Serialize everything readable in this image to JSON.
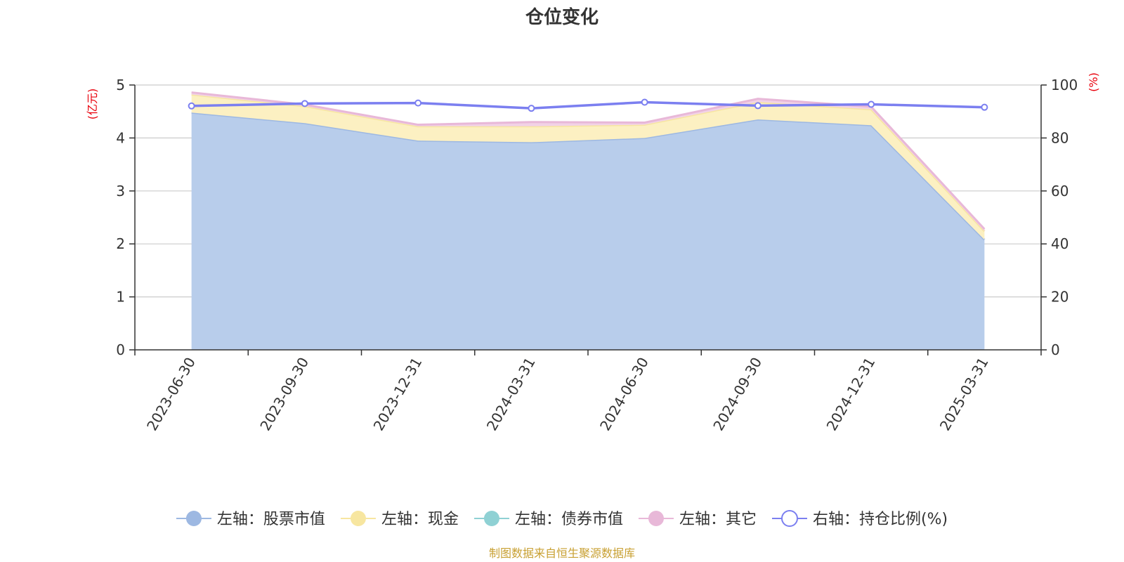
{
  "chart_data": {
    "type": "area",
    "title": "仓位变化",
    "categories": [
      "2023-06-30",
      "2023-09-30",
      "2023-12-31",
      "2024-03-31",
      "2024-06-30",
      "2024-09-30",
      "2024-12-31",
      "2025-03-31"
    ],
    "left_axis": {
      "unit": "(亿元)",
      "range": [
        0,
        5
      ],
      "ticks": [
        0,
        1,
        2,
        3,
        4,
        5
      ]
    },
    "right_axis": {
      "unit": "(%)",
      "range": [
        0,
        100
      ],
      "ticks": [
        0,
        20,
        40,
        60,
        80,
        100
      ]
    },
    "stacked_series": [
      {
        "name": "左轴：股票市值",
        "color": "#9db8e2",
        "fill": "#b8cdeb",
        "values": [
          4.48,
          4.28,
          3.95,
          3.92,
          4.0,
          4.35,
          4.24,
          2.08
        ]
      },
      {
        "name": "左轴：现金",
        "color": "#f7e6a0",
        "fill": "#fcf0c2",
        "values": [
          0.34,
          0.32,
          0.27,
          0.3,
          0.25,
          0.33,
          0.3,
          0.16
        ]
      },
      {
        "name": "左轴：债券市值",
        "color": "#8fd1d4",
        "fill": "#b5e2e4",
        "values": [
          0,
          0,
          0,
          0,
          0,
          0,
          0,
          0
        ]
      },
      {
        "name": "左轴：其它",
        "color": "#e8b8d8",
        "fill": "#f2d2e6",
        "values": [
          0.04,
          0.03,
          0.03,
          0.08,
          0.04,
          0.06,
          0.05,
          0.04
        ]
      }
    ],
    "line_series": {
      "name": "右轴：持仓比例(%)",
      "color": "#7b7ff0",
      "values": [
        92.1,
        93.0,
        93.2,
        91.2,
        93.5,
        92.2,
        92.7,
        91.6
      ]
    },
    "grid": true,
    "legend_position": "bottom"
  },
  "source_note": "制图数据来自恒生聚源数据库"
}
